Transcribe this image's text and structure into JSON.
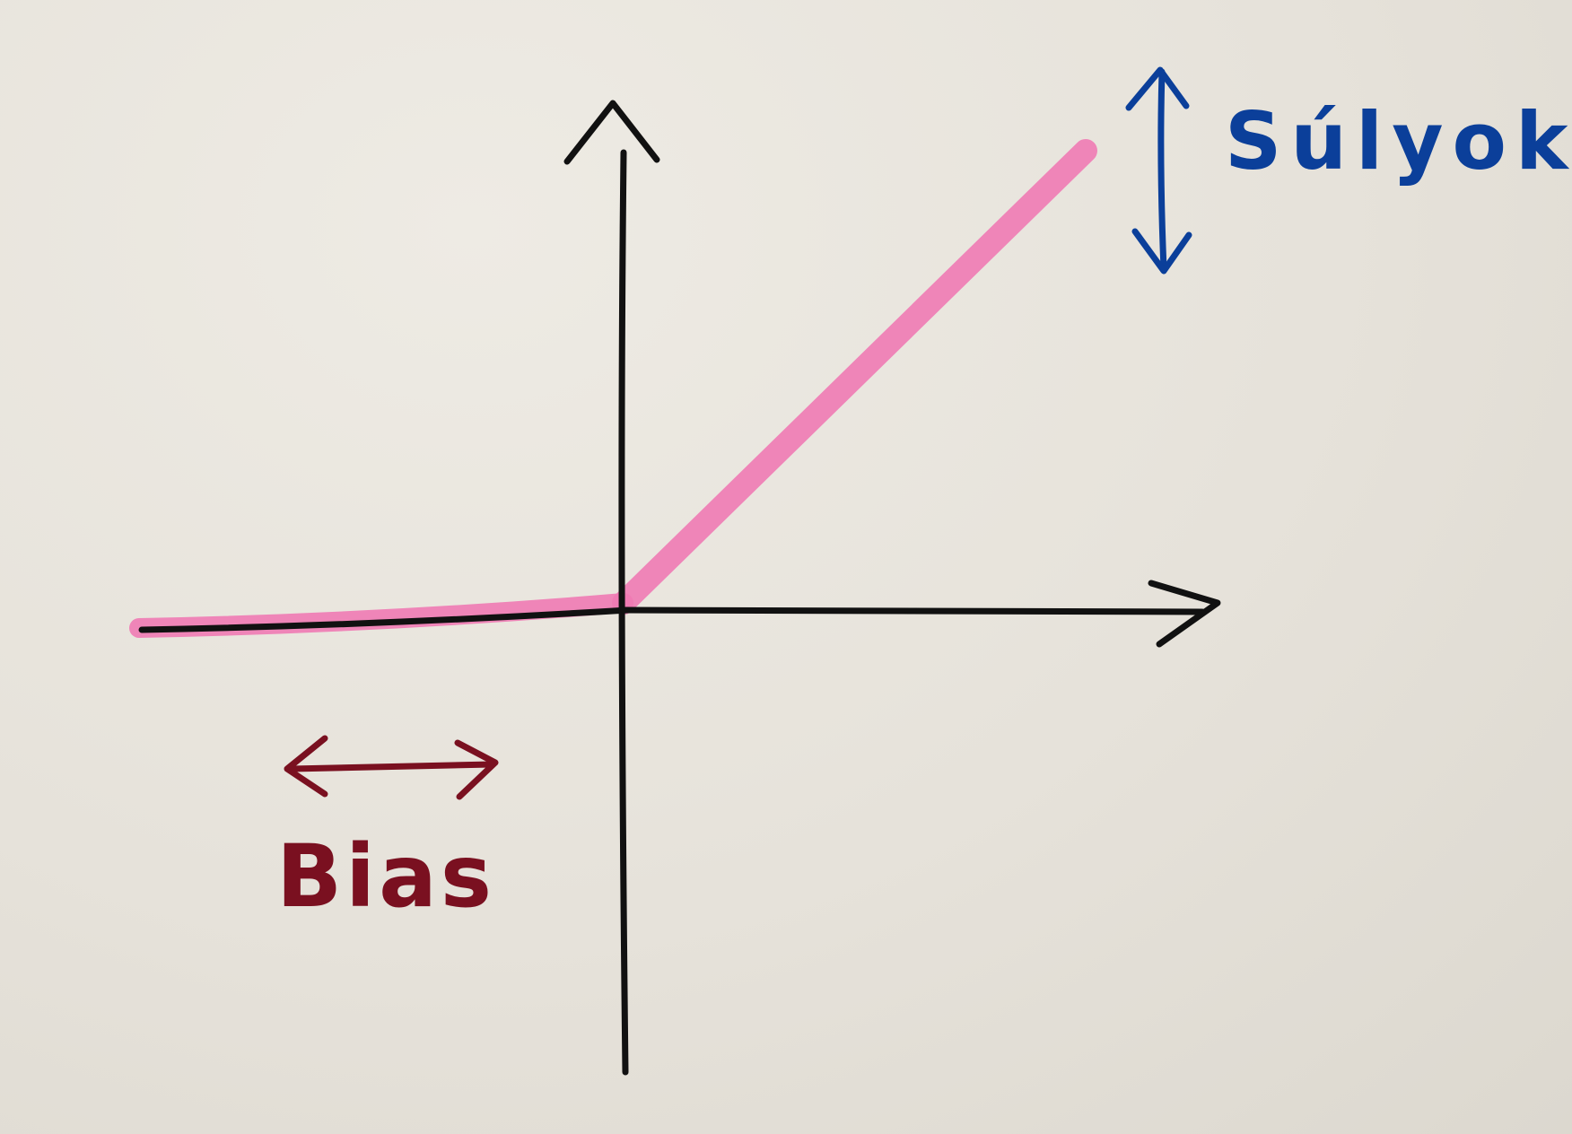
{
  "labels": {
    "weights": "Súlyok",
    "bias": "Bias"
  },
  "colors": {
    "paper": "#e8e4dc",
    "axis_ink": "#111111",
    "curve_highlight": "#f07ab4",
    "weights_ink": "#0b3f9a",
    "bias_ink": "#7a1020"
  },
  "icons": {
    "weights_arrow": "double-arrow-vertical-icon",
    "bias_arrow": "double-arrow-horizontal-icon"
  }
}
